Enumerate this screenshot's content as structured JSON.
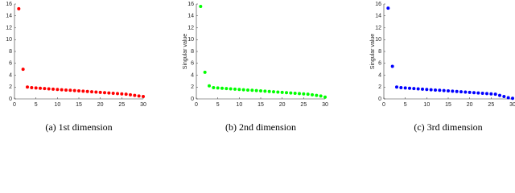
{
  "chart_data": [
    {
      "type": "scatter",
      "caption": "(a) 1st dimension",
      "color": "#ff0000",
      "x": [
        1,
        2,
        3,
        4,
        5,
        6,
        7,
        8,
        9,
        10,
        11,
        12,
        13,
        14,
        15,
        16,
        17,
        18,
        19,
        20,
        21,
        22,
        23,
        24,
        25,
        26,
        27,
        28,
        29,
        30
      ],
      "values": [
        15.2,
        5.0,
        2.0,
        1.9,
        1.85,
        1.8,
        1.75,
        1.7,
        1.65,
        1.6,
        1.55,
        1.5,
        1.45,
        1.4,
        1.35,
        1.3,
        1.25,
        1.2,
        1.15,
        1.1,
        1.05,
        1.0,
        0.95,
        0.9,
        0.85,
        0.8,
        0.7,
        0.6,
        0.5,
        0.4
      ],
      "xlim": [
        0,
        30
      ],
      "ylim": [
        0,
        16
      ],
      "xticks": [
        0,
        5,
        10,
        15,
        20,
        25,
        30
      ],
      "yticks": [
        0,
        2,
        4,
        6,
        8,
        10,
        12,
        14,
        16
      ]
    },
    {
      "type": "scatter",
      "caption": "(b) 2nd dimension",
      "ylabel": "Singular value",
      "color": "#00ff00",
      "x": [
        1,
        2,
        3,
        4,
        5,
        6,
        7,
        8,
        9,
        10,
        11,
        12,
        13,
        14,
        15,
        16,
        17,
        18,
        19,
        20,
        21,
        22,
        23,
        24,
        25,
        26,
        27,
        28,
        29,
        30
      ],
      "values": [
        15.6,
        4.5,
        2.2,
        1.9,
        1.85,
        1.8,
        1.75,
        1.7,
        1.65,
        1.6,
        1.55,
        1.5,
        1.45,
        1.4,
        1.35,
        1.3,
        1.25,
        1.2,
        1.15,
        1.1,
        1.05,
        1.0,
        0.95,
        0.9,
        0.85,
        0.8,
        0.7,
        0.6,
        0.5,
        0.3
      ],
      "xlim": [
        0,
        30
      ],
      "ylim": [
        0,
        16
      ],
      "xticks": [
        0,
        5,
        10,
        15,
        20,
        25,
        30
      ],
      "yticks": [
        0,
        2,
        4,
        6,
        8,
        10,
        12,
        14,
        16
      ]
    },
    {
      "type": "scatter",
      "caption": "(c) 3rd dimension",
      "ylabel": "Singular value",
      "color": "#0000ff",
      "x": [
        1,
        2,
        3,
        4,
        5,
        6,
        7,
        8,
        9,
        10,
        11,
        12,
        13,
        14,
        15,
        16,
        17,
        18,
        19,
        20,
        21,
        22,
        23,
        24,
        25,
        26,
        27,
        28,
        29,
        30
      ],
      "values": [
        15.3,
        5.5,
        2.0,
        1.9,
        1.85,
        1.8,
        1.75,
        1.7,
        1.65,
        1.6,
        1.55,
        1.5,
        1.45,
        1.4,
        1.35,
        1.3,
        1.25,
        1.2,
        1.15,
        1.1,
        1.05,
        1.0,
        0.95,
        0.9,
        0.85,
        0.8,
        0.6,
        0.4,
        0.2,
        0.1
      ],
      "xlim": [
        0,
        30
      ],
      "ylim": [
        0,
        16
      ],
      "xticks": [
        0,
        5,
        10,
        15,
        20,
        25,
        30
      ],
      "yticks": [
        0,
        2,
        4,
        6,
        8,
        10,
        12,
        14,
        16
      ]
    }
  ]
}
